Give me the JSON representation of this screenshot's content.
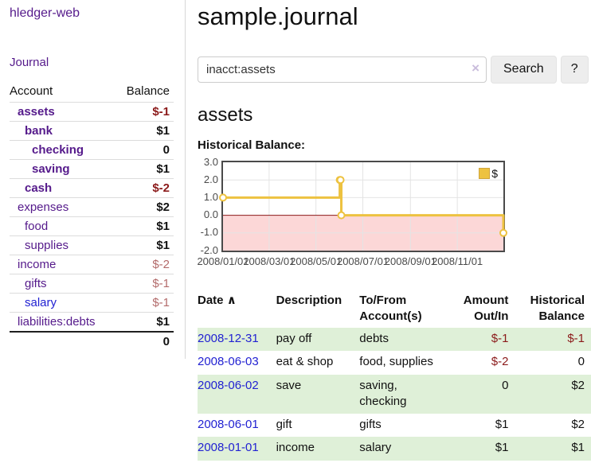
{
  "app": {
    "title": "hledger-web"
  },
  "sidebar": {
    "journal_link": "Journal",
    "accounts_header": {
      "account": "Account",
      "balance": "Balance"
    },
    "accounts": [
      {
        "name": "assets",
        "indent": 0,
        "balance": "$-1",
        "emphasized": true,
        "balance_style": "negative-strong"
      },
      {
        "name": "bank",
        "indent": 1,
        "balance": "$1",
        "emphasized": true,
        "balance_style": "positive"
      },
      {
        "name": "checking",
        "indent": 2,
        "balance": "0",
        "emphasized": true,
        "balance_style": "positive"
      },
      {
        "name": "saving",
        "indent": 2,
        "balance": "$1",
        "emphasized": true,
        "balance_style": "positive"
      },
      {
        "name": "cash",
        "indent": 1,
        "balance": "$-2",
        "emphasized": true,
        "balance_style": "negative-strong"
      },
      {
        "name": "expenses",
        "indent": 0,
        "balance": "$2",
        "emphasized": false,
        "balance_style": "positive"
      },
      {
        "name": "food",
        "indent": 1,
        "balance": "$1",
        "emphasized": false,
        "balance_style": "positive"
      },
      {
        "name": "supplies",
        "indent": 1,
        "balance": "$1",
        "emphasized": false,
        "balance_style": "positive"
      },
      {
        "name": "income",
        "indent": 0,
        "balance": "$-2",
        "emphasized": false,
        "balance_style": "negative-muted"
      },
      {
        "name": "gifts",
        "indent": 1,
        "balance": "$-1",
        "emphasized": false,
        "balance_style": "negative-muted"
      },
      {
        "name": "salary",
        "indent": 1,
        "balance": "$-1",
        "emphasized": false,
        "balance_style": "negative-muted",
        "link_style": "unvisited-blue"
      },
      {
        "name": "liabilities:debts",
        "indent": 0,
        "balance": "$1",
        "emphasized": false,
        "balance_style": "positive"
      }
    ],
    "total": "0"
  },
  "main": {
    "title": "sample.journal",
    "search": {
      "value": "inacct:assets",
      "clear_icon": "×",
      "button": "Search",
      "help_button": "?"
    },
    "account_heading": "assets",
    "chart_label": "Historical Balance:"
  },
  "chart_data": {
    "type": "line",
    "subtype": "step",
    "title": "Historical Balance",
    "x_range_days": [
      0,
      365
    ],
    "y_range": [
      -2,
      3
    ],
    "y_ticks": [
      {
        "label": "3.0",
        "value": 3
      },
      {
        "label": "2.0",
        "value": 2
      },
      {
        "label": "1.0",
        "value": 1
      },
      {
        "label": "0.0",
        "value": 0
      },
      {
        "label": "-1.0",
        "value": -1
      },
      {
        "label": "-2.0",
        "value": -2
      }
    ],
    "x_ticks": [
      {
        "label": "2008/01/01",
        "day": 0
      },
      {
        "label": "2008/03/01",
        "day": 60
      },
      {
        "label": "2008/05/01",
        "day": 121
      },
      {
        "label": "2008/07/01",
        "day": 182
      },
      {
        "label": "2008/09/01",
        "day": 244
      },
      {
        "label": "2008/11/01",
        "day": 305
      }
    ],
    "grid_y_values": [
      2,
      1,
      -1
    ],
    "series": [
      {
        "name": "$",
        "color": "#edc240",
        "points": [
          {
            "date": "2008-01-01",
            "day": 0,
            "value": 1
          },
          {
            "date": "2008-06-01",
            "day": 152,
            "value": 2
          },
          {
            "date": "2008-06-02",
            "day": 153,
            "value": 2
          },
          {
            "date": "2008-06-03",
            "day": 154,
            "value": 0
          },
          {
            "date": "2008-12-31",
            "day": 365,
            "value": -1
          }
        ]
      }
    ],
    "negative_region_color": "#fcd7d7",
    "zero_line_color": "#8b1a1a",
    "legend_position": "top-right"
  },
  "register": {
    "sort_icon": "∧",
    "columns": [
      {
        "label": "Date"
      },
      {
        "label": "Description"
      },
      {
        "label": "To/From Account(s)"
      },
      {
        "label": "Amount Out/In"
      },
      {
        "label": "Historical Balance"
      }
    ],
    "rows": [
      {
        "date": "2008-12-31",
        "description": "pay off",
        "accounts": "debts",
        "amount": "$-1",
        "balance": "$-1"
      },
      {
        "date": "2008-06-03",
        "description": "eat & shop",
        "accounts": "food, supplies",
        "amount": "$-2",
        "balance": "0"
      },
      {
        "date": "2008-06-02",
        "description": "save",
        "accounts": "saving, checking",
        "amount": "0",
        "balance": "$2"
      },
      {
        "date": "2008-06-01",
        "description": "gift",
        "accounts": "gifts",
        "amount": "$1",
        "balance": "$2"
      },
      {
        "date": "2008-01-01",
        "description": "income",
        "accounts": "salary",
        "amount": "$1",
        "balance": "$1"
      }
    ]
  },
  "colors": {
    "visited_purple": "#551a8b",
    "link_blue": "#2222d2",
    "negative_strong": "#8b1a1a",
    "negative_muted": "#b36b6b",
    "row_green": "#dff0d8",
    "chart_gold": "#edc240"
  }
}
